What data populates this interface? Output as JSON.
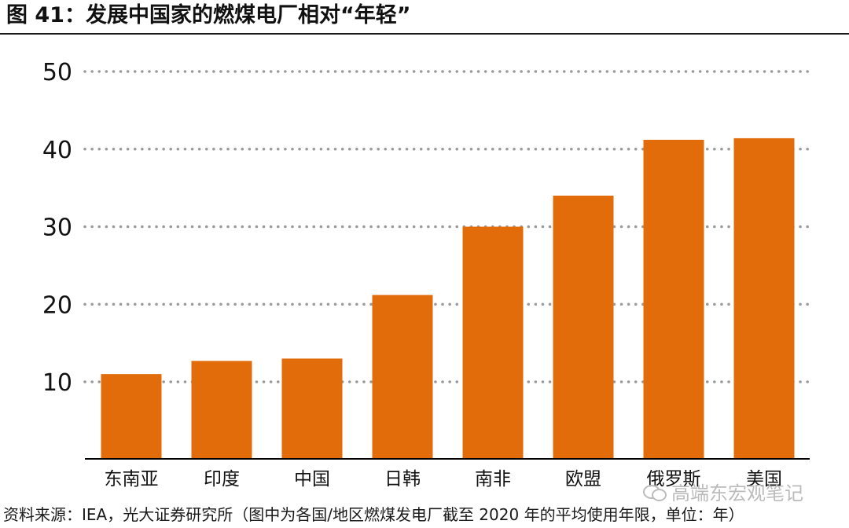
{
  "title": "图 41：发展中国家的燃煤电厂相对“年轻”",
  "source": "资料来源：IEA，光大证券研究所（图中为各国/地区燃煤发电厂截至 2020 年的平均使用年限，单位：年）",
  "watermark": "高端东宏观笔记",
  "colors": {
    "bar": "#E36C0A",
    "grid": "#9a9a9a",
    "axis": "#000000"
  },
  "chart_data": {
    "type": "bar",
    "categories": [
      "东南亚",
      "印度",
      "中国",
      "日韩",
      "南非",
      "欧盟",
      "俄罗斯",
      "美国"
    ],
    "values": [
      11,
      12.7,
      13,
      21.2,
      30,
      34,
      41.2,
      41.4
    ],
    "ylim": [
      0,
      50
    ],
    "yticks": [
      10,
      20,
      30,
      40,
      50
    ],
    "grid": true,
    "xlabel": "",
    "ylabel": ""
  }
}
